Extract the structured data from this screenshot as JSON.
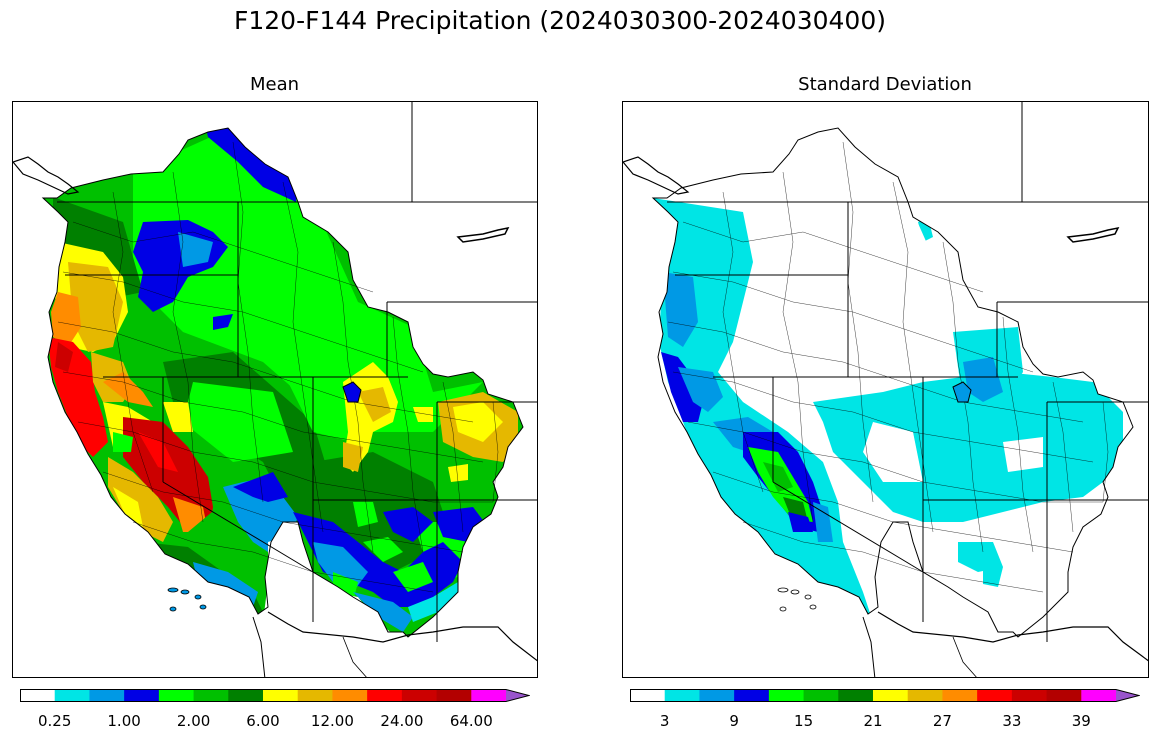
{
  "figure": {
    "title": "F120-F144 Precipitation (2024030300-2024030400)"
  },
  "panels": [
    {
      "id": "mean",
      "title": "Mean",
      "colorbar": {
        "colors": [
          "#ffffff",
          "#00e5e5",
          "#0099e5",
          "#0000e5",
          "#00ff00",
          "#00c000",
          "#008000",
          "#ffff00",
          "#e5b800",
          "#ff8c00",
          "#ff0000",
          "#cc0000",
          "#b30000",
          "#ff00ff",
          "#9955cc"
        ],
        "tick_labels": [
          "0.25",
          "1.00",
          "2.00",
          "6.00",
          "12.00",
          "24.00",
          "64.00"
        ],
        "tick_bins": [
          1,
          3,
          5,
          7,
          9,
          11,
          13
        ]
      }
    },
    {
      "id": "std",
      "title": "Standard Deviation",
      "colorbar": {
        "colors": [
          "#ffffff",
          "#00e5e5",
          "#0099e5",
          "#0000e5",
          "#00ff00",
          "#00c000",
          "#008000",
          "#ffff00",
          "#e5b800",
          "#ff8c00",
          "#ff0000",
          "#cc0000",
          "#b30000",
          "#ff00ff",
          "#9955cc"
        ],
        "tick_labels": [
          "3",
          "9",
          "15",
          "21",
          "27",
          "33",
          "39"
        ],
        "tick_bins": [
          1,
          3,
          5,
          7,
          9,
          11,
          13
        ]
      }
    }
  ],
  "map_regions": {
    "mean": [
      {
        "region": "pacific-northwest-interior",
        "color": "#00c000"
      },
      {
        "region": "northern-rockies",
        "color": "#00ff00"
      },
      {
        "region": "canada-upper-columbia",
        "color": "#0000e5"
      },
      {
        "region": "washington-cascades",
        "color": "#008000"
      },
      {
        "region": "central-washington",
        "color": "#0000e5"
      },
      {
        "region": "oregon-coast-range",
        "color": "#e5b800"
      },
      {
        "region": "oregon-coast",
        "color": "#ff8c00"
      },
      {
        "region": "northern-california-coast",
        "color": "#ff0000"
      },
      {
        "region": "sierra-nevada",
        "color": "#cc0000"
      },
      {
        "region": "sierra-foothills",
        "color": "#ffff00"
      },
      {
        "region": "great-basin",
        "color": "#008000"
      },
      {
        "region": "colorado-rockies",
        "color": "#ffff00"
      },
      {
        "region": "eastern-colorado",
        "color": "#e5b800"
      },
      {
        "region": "southern-utah-arizona",
        "color": "#0000e5"
      },
      {
        "region": "southern-california",
        "color": "#0099e5"
      },
      {
        "region": "desert-southwest",
        "color": "#ffffff"
      }
    ],
    "std": [
      {
        "region": "pacific-coast",
        "color": "#00e5e5"
      },
      {
        "region": "northern-california-coast",
        "color": "#0099e5"
      },
      {
        "region": "sierra-nevada",
        "color": "#00ff00"
      },
      {
        "region": "sierra-core",
        "color": "#0000e5"
      },
      {
        "region": "nevada-utah",
        "color": "#00e5e5"
      },
      {
        "region": "colorado-plateau",
        "color": "#00e5e5"
      },
      {
        "region": "northern-colorado",
        "color": "#0099e5"
      },
      {
        "region": "interior-west",
        "color": "#ffffff"
      }
    ]
  }
}
